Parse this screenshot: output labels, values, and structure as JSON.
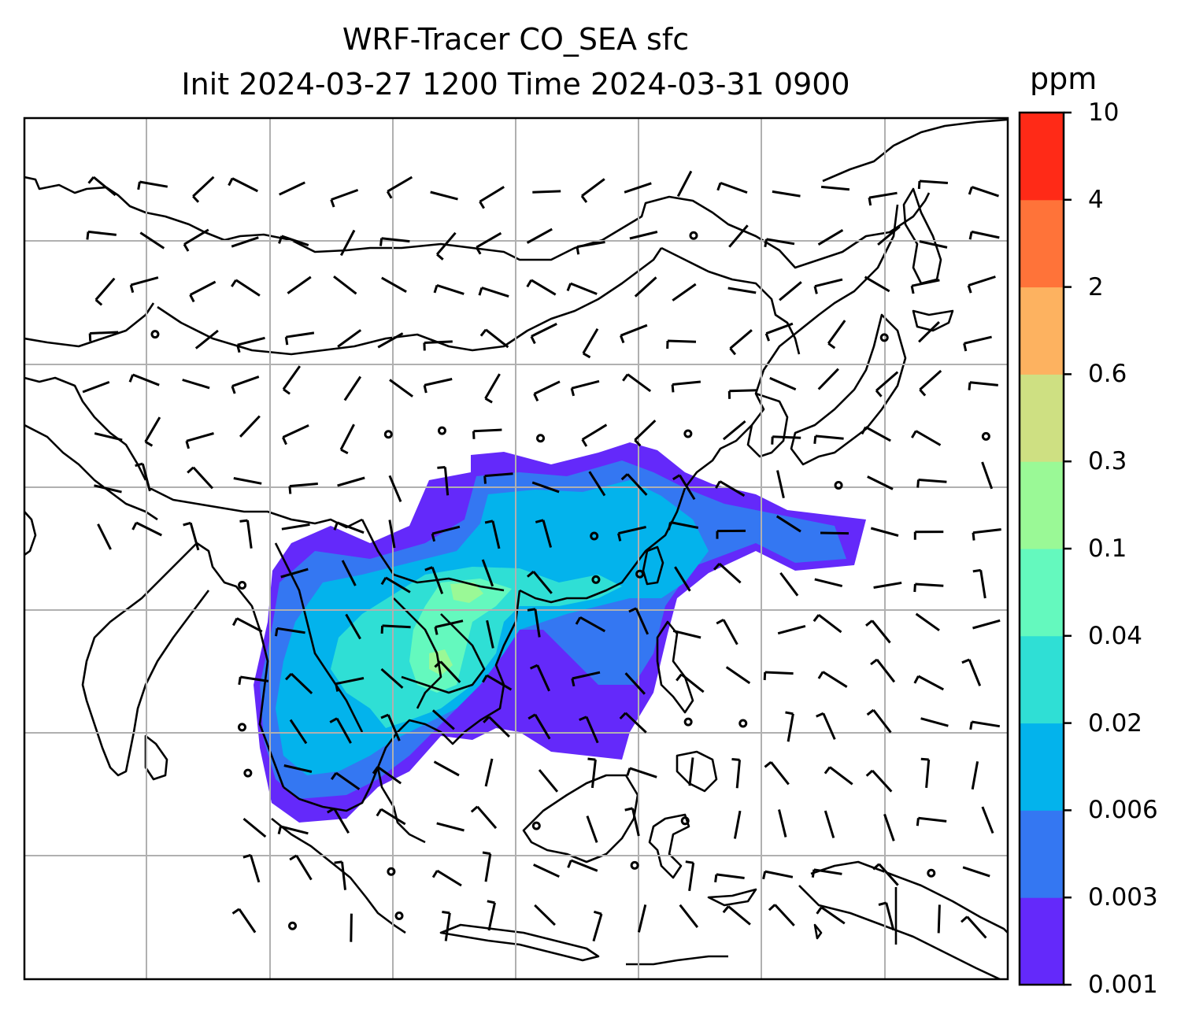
{
  "title": {
    "line1": "WRF-Tracer CO_SEA sfc",
    "line2": "Init 2024-03-27 1200 Time 2024-03-31 0900"
  },
  "colorbar": {
    "unit": "ppm",
    "ticks": [
      "0.001",
      "0.003",
      "0.006",
      "0.02",
      "0.04",
      "0.1",
      "0.3",
      "0.6",
      "2",
      "4",
      "10"
    ],
    "colors": [
      "#6429fa",
      "#3477f2",
      "#03b3ec",
      "#2fdfd5",
      "#64f9be",
      "#9af996",
      "#cee082",
      "#fdb260",
      "#ff7339",
      "#ff2a17"
    ]
  },
  "map": {
    "region": "East and Southeast Asia",
    "gridlines": true,
    "layers": [
      "coastlines",
      "country-borders",
      "tracer-concentration-fill",
      "wind-barbs"
    ]
  }
}
